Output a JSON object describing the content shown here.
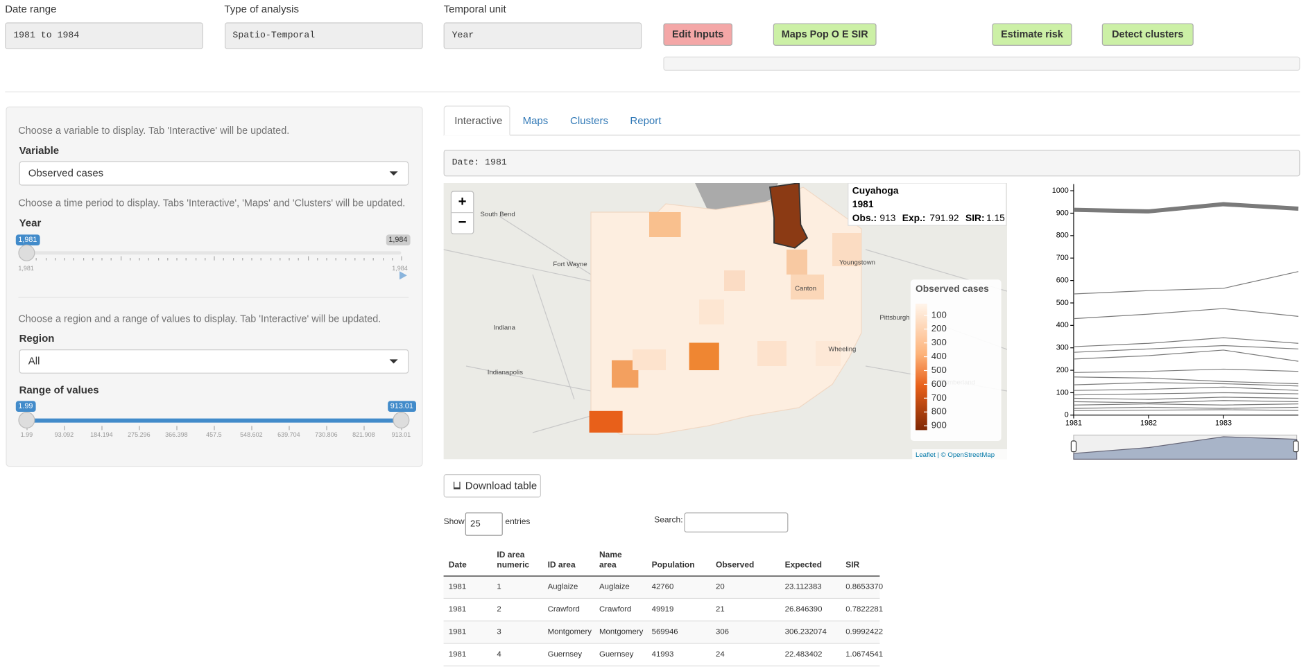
{
  "header": {
    "fields": [
      {
        "label": "Date range",
        "value": "1981 to 1984"
      },
      {
        "label": "Type of analysis",
        "value": "Spatio-Temporal"
      },
      {
        "label": "Temporal unit",
        "value": "Year"
      }
    ],
    "buttons": [
      "Edit Inputs",
      "Maps Pop O E SIR",
      "Estimate risk",
      "Detect clusters"
    ]
  },
  "sidebar": {
    "help_variable": "Choose a variable to display. Tab 'Interactive' will be updated.",
    "variable_label": "Variable",
    "variable_value": "Observed cases",
    "help_time": "Choose a time period to display. Tabs 'Interactive', 'Maps' and 'Clusters' will be updated.",
    "year_label": "Year",
    "year_slider": {
      "from": "1,981",
      "to": "1,984",
      "min": "1,981",
      "max": "1,984"
    },
    "help_region": "Choose a region and a range of values to display. Tab 'Interactive' will be updated.",
    "region_label": "Region",
    "region_value": "All",
    "range_label": "Range of values",
    "range_slider": {
      "from": "1.99",
      "to": "913.01",
      "ticks": [
        "1.99",
        "93.092",
        "184.194",
        "275.296",
        "366.398",
        "457.5",
        "548.602",
        "639.704",
        "730.806",
        "821.908",
        "913.01"
      ]
    }
  },
  "tabs": [
    "Interactive",
    "Maps",
    "Clusters",
    "Report"
  ],
  "date_box": "Date: 1981",
  "map": {
    "zoom_in": "+",
    "zoom_out": "−",
    "places": [
      "South Bend",
      "Fort Wayne",
      "Indiana",
      "Indianapolis",
      "Pittsburgh",
      "Cumberland",
      "Wheeling",
      "Youngstown",
      "Canton"
    ],
    "tooltip": {
      "name": "Cuyahoga",
      "date": "1981",
      "obs_label": "Obs.:",
      "obs": "913",
      "exp_label": "Exp.:",
      "exp": "791.92",
      "sir_label": "SIR:",
      "sir": "1.15"
    },
    "legend": {
      "title": "Observed cases",
      "labels": [
        "100",
        "200",
        "300",
        "400",
        "500",
        "600",
        "700",
        "800",
        "900"
      ]
    },
    "attribution": "Leaflet | © OpenStreetMap"
  },
  "chart_data": {
    "type": "line",
    "x": [
      1981,
      1982,
      1983,
      1984
    ],
    "xlim": [
      1981,
      1984
    ],
    "xticks": [
      1981,
      1982,
      1983
    ],
    "ylim": [
      0,
      1030
    ],
    "yticks": [
      0,
      100,
      200,
      300,
      400,
      500,
      600,
      700,
      800,
      900,
      1000
    ],
    "series": [
      {
        "color": "#7a7a7a",
        "width": 5,
        "values": [
          915,
          908,
          940,
          920
        ]
      },
      {
        "color": "#7a7a7a",
        "width": 1,
        "values": [
          540,
          555,
          565,
          640
        ]
      },
      {
        "color": "#7a7a7a",
        "width": 1,
        "values": [
          430,
          450,
          475,
          440
        ]
      },
      {
        "color": "#7a7a7a",
        "width": 1,
        "values": [
          305,
          320,
          345,
          320
        ]
      },
      {
        "color": "#7a7a7a",
        "width": 1,
        "values": [
          280,
          295,
          310,
          295
        ]
      },
      {
        "color": "#7a7a7a",
        "width": 1,
        "values": [
          250,
          265,
          290,
          240
        ]
      },
      {
        "color": "#7a7a7a",
        "width": 1,
        "values": [
          190,
          195,
          205,
          195
        ]
      },
      {
        "color": "#7a7a7a",
        "width": 1,
        "values": [
          170,
          165,
          150,
          140
        ]
      },
      {
        "color": "#7a7a7a",
        "width": 1,
        "values": [
          135,
          145,
          140,
          130
        ]
      },
      {
        "color": "#7a7a7a",
        "width": 1,
        "values": [
          110,
          115,
          125,
          110
        ]
      },
      {
        "color": "#7a7a7a",
        "width": 1,
        "values": [
          90,
          95,
          100,
          95
        ]
      },
      {
        "color": "#7a7a7a",
        "width": 1,
        "values": [
          75,
          70,
          80,
          75
        ]
      },
      {
        "color": "#7a7a7a",
        "width": 1,
        "values": [
          60,
          55,
          65,
          60
        ]
      },
      {
        "color": "#7a7a7a",
        "width": 1,
        "values": [
          45,
          50,
          45,
          50
        ]
      },
      {
        "color": "#7a7a7a",
        "width": 1,
        "values": [
          30,
          35,
          30,
          35
        ]
      },
      {
        "color": "#7a7a7a",
        "width": 1,
        "values": [
          20,
          22,
          24,
          21
        ]
      }
    ]
  },
  "download": "Download table",
  "table": {
    "show": "Show",
    "entries_value": "25",
    "entries": "entries",
    "search": "Search:",
    "columns": [
      "Date",
      "ID area numeric",
      "ID area",
      "Name area",
      "Population",
      "Observed",
      "Expected",
      "SIR"
    ],
    "rows": [
      [
        "1981",
        "1",
        "Auglaize",
        "Auglaize",
        "42760",
        "20",
        "23.112383",
        "0.8653370"
      ],
      [
        "1981",
        "2",
        "Crawford",
        "Crawford",
        "49919",
        "21",
        "26.846390",
        "0.7822281"
      ],
      [
        "1981",
        "3",
        "Montgomery",
        "Montgomery",
        "569946",
        "306",
        "306.232074",
        "0.9992422"
      ],
      [
        "1981",
        "4",
        "Guernsey",
        "Guernsey",
        "41993",
        "24",
        "22.483402",
        "1.0674541"
      ]
    ]
  }
}
